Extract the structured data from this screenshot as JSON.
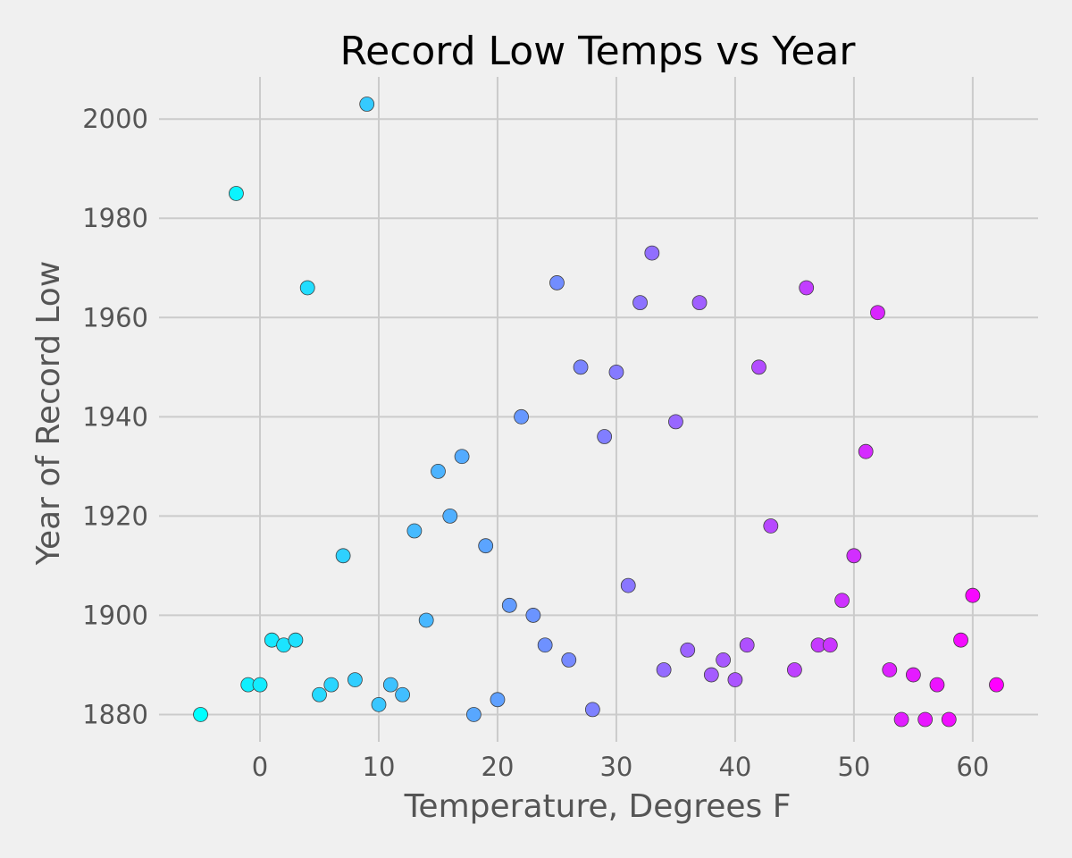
{
  "chart_data": {
    "type": "scatter",
    "title": "Record Low Temps vs Year",
    "xlabel": "Temperature, Degrees F",
    "ylabel": "Year of Record Low",
    "xlim": [
      -8.5,
      65.5
    ],
    "ylim": [
      1874.5,
      2008.5
    ],
    "x_ticks": [
      0,
      10,
      20,
      30,
      40,
      50,
      60
    ],
    "y_ticks": [
      1880,
      1900,
      1920,
      1940,
      1960,
      1980,
      2000
    ],
    "grid": true,
    "legend": "none",
    "colormap": "cool",
    "color_range": [
      -5,
      62
    ],
    "colormap_start": "#00ffff",
    "colormap_end": "#ff00ff",
    "points": [
      {
        "x": -5,
        "y": 1880
      },
      {
        "x": -2,
        "y": 1985
      },
      {
        "x": -1,
        "y": 1886
      },
      {
        "x": 0,
        "y": 1886
      },
      {
        "x": 1,
        "y": 1895
      },
      {
        "x": 2,
        "y": 1894
      },
      {
        "x": 3,
        "y": 1895
      },
      {
        "x": 4,
        "y": 1966
      },
      {
        "x": 5,
        "y": 1884
      },
      {
        "x": 6,
        "y": 1886
      },
      {
        "x": 7,
        "y": 1912
      },
      {
        "x": 8,
        "y": 1887
      },
      {
        "x": 9,
        "y": 2003
      },
      {
        "x": 10,
        "y": 1882
      },
      {
        "x": 11,
        "y": 1886
      },
      {
        "x": 12,
        "y": 1884
      },
      {
        "x": 13,
        "y": 1917
      },
      {
        "x": 14,
        "y": 1899
      },
      {
        "x": 15,
        "y": 1929
      },
      {
        "x": 16,
        "y": 1920
      },
      {
        "x": 17,
        "y": 1932
      },
      {
        "x": 18,
        "y": 1880
      },
      {
        "x": 19,
        "y": 1914
      },
      {
        "x": 20,
        "y": 1883
      },
      {
        "x": 21,
        "y": 1902
      },
      {
        "x": 22,
        "y": 1940
      },
      {
        "x": 23,
        "y": 1900
      },
      {
        "x": 24,
        "y": 1894
      },
      {
        "x": 25,
        "y": 1967
      },
      {
        "x": 26,
        "y": 1891
      },
      {
        "x": 27,
        "y": 1950
      },
      {
        "x": 28,
        "y": 1881
      },
      {
        "x": 29,
        "y": 1936
      },
      {
        "x": 30,
        "y": 1949
      },
      {
        "x": 31,
        "y": 1906
      },
      {
        "x": 32,
        "y": 1963
      },
      {
        "x": 33,
        "y": 1973
      },
      {
        "x": 34,
        "y": 1889
      },
      {
        "x": 35,
        "y": 1939
      },
      {
        "x": 36,
        "y": 1893
      },
      {
        "x": 37,
        "y": 1963
      },
      {
        "x": 38,
        "y": 1888
      },
      {
        "x": 39,
        "y": 1891
      },
      {
        "x": 40,
        "y": 1887
      },
      {
        "x": 41,
        "y": 1894
      },
      {
        "x": 42,
        "y": 1950
      },
      {
        "x": 43,
        "y": 1918
      },
      {
        "x": 45,
        "y": 1889
      },
      {
        "x": 46,
        "y": 1966
      },
      {
        "x": 47,
        "y": 1894
      },
      {
        "x": 48,
        "y": 1894
      },
      {
        "x": 49,
        "y": 1903
      },
      {
        "x": 50,
        "y": 1912
      },
      {
        "x": 51,
        "y": 1933
      },
      {
        "x": 52,
        "y": 1961
      },
      {
        "x": 53,
        "y": 1889
      },
      {
        "x": 54,
        "y": 1879
      },
      {
        "x": 55,
        "y": 1888
      },
      {
        "x": 56,
        "y": 1879
      },
      {
        "x": 57,
        "y": 1886
      },
      {
        "x": 58,
        "y": 1879
      },
      {
        "x": 59,
        "y": 1895
      },
      {
        "x": 60,
        "y": 1904
      },
      {
        "x": 62,
        "y": 1886
      }
    ]
  }
}
